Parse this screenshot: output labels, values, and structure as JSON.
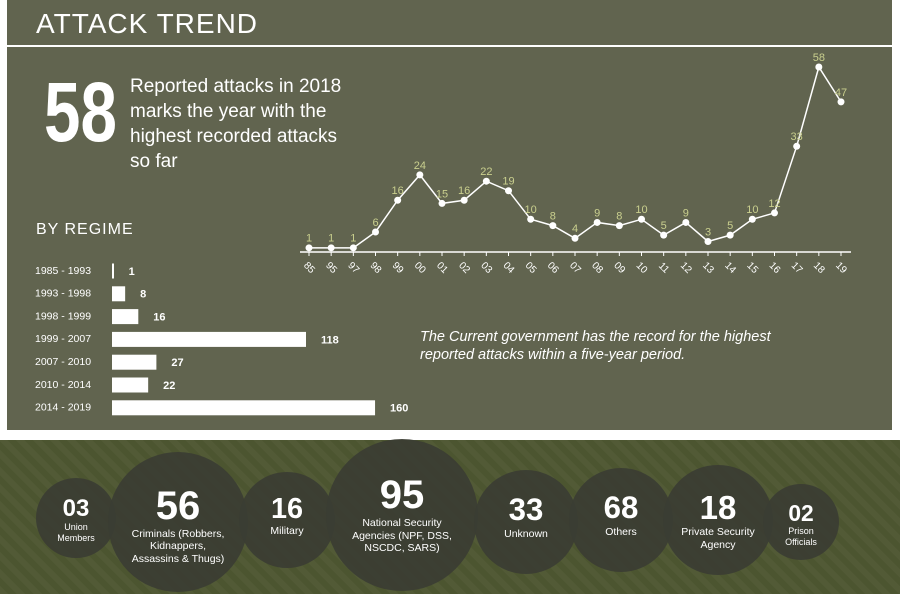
{
  "header": {
    "title": "ATTACK TREND"
  },
  "highlight": {
    "number": "58",
    "text": "Reported attacks in 2018 marks the year with the highest recorded attacks so far"
  },
  "note": "The Current government has the record for the highest reported attacks within a five-year period.",
  "chart_data": [
    {
      "type": "line",
      "categories": [
        "85",
        "95",
        "97",
        "98",
        "99",
        "00",
        "01",
        "02",
        "03",
        "04",
        "05",
        "06",
        "07",
        "08",
        "09",
        "10",
        "11",
        "12",
        "13",
        "14",
        "15",
        "16",
        "17",
        "18",
        "19"
      ],
      "values": [
        1,
        1,
        1,
        6,
        16,
        24,
        15,
        16,
        22,
        19,
        10,
        8,
        4,
        9,
        8,
        10,
        5,
        9,
        3,
        5,
        10,
        12,
        33,
        58,
        47
      ],
      "color": "#ffffff",
      "label_color": "#c9cf8e"
    },
    {
      "type": "hbar",
      "title": "BY REGIME",
      "categories": [
        "1985 - 1993",
        "1993 - 1998",
        "1998 - 1999",
        "1999 - 2007",
        "2007 - 2010",
        "2010 - 2014",
        "2014 - 2019"
      ],
      "values": [
        1,
        8,
        16,
        118,
        27,
        22,
        160
      ],
      "color": "#ffffff"
    }
  ],
  "circles": [
    {
      "number": "03",
      "label": "Union Members"
    },
    {
      "number": "56",
      "label": "Criminals (Robbers, Kidnappers, Assassins & Thugs)"
    },
    {
      "number": "16",
      "label": "Military"
    },
    {
      "number": "95",
      "label": "National Security Agencies (NPF, DSS, NSCDC, SARS)"
    },
    {
      "number": "33",
      "label": "Unknown"
    },
    {
      "number": "68",
      "label": "Others"
    },
    {
      "number": "18",
      "label": "Private Security Agency"
    },
    {
      "number": "02",
      "label": "Prison Officials"
    }
  ]
}
